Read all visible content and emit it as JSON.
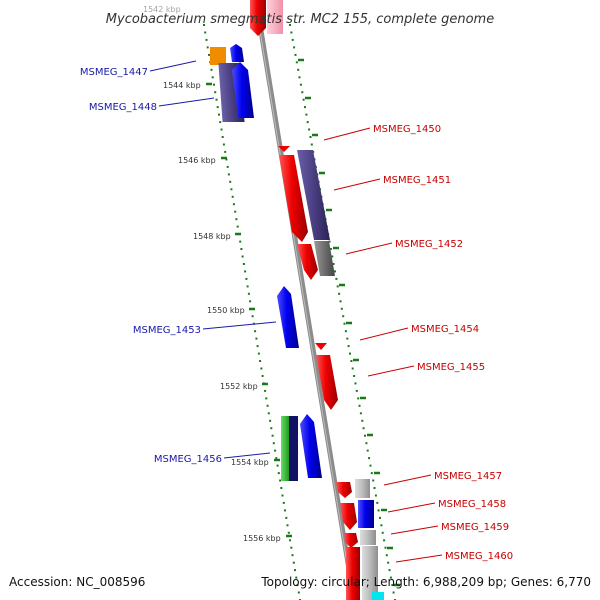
{
  "title": "Mycobacterium smegmatis str. MC2 155, complete genome",
  "footer": {
    "accession": "Accession: NC_008596",
    "summary": "Topology: circular; Length: 6,988,209 bp; Genes: 6,770"
  },
  "kbp_labels": [
    "1542 kbp",
    "1544 kbp",
    "1546 kbp",
    "1548 kbp",
    "1550 kbp",
    "1552 kbp",
    "1554 kbp",
    "1556 kbp"
  ],
  "left_genes": [
    "MSMEG_1447",
    "MSMEG_1448",
    "MSMEG_1453",
    "MSMEG_1456"
  ],
  "right_genes": [
    "MSMEG_1450",
    "MSMEG_1451",
    "MSMEG_1452",
    "MSMEG_1454",
    "MSMEG_1455",
    "MSMEG_1457",
    "MSMEG_1458",
    "MSMEG_1459",
    "MSMEG_1460"
  ],
  "colors": {
    "forward_strand": "#0000ee",
    "reverse_strand": "#ee0000",
    "homolog_dark": "#4a3f82",
    "homolog_grey": "#707070",
    "homolog_light": "#b8b8b8",
    "orange": "#f08c00",
    "green": "#33bb33",
    "navy": "#111166",
    "pink": "#f0a0b8",
    "cyan": "#00e5ee",
    "backbone": "#8c8c8c",
    "tick": "#1a7a1a"
  }
}
